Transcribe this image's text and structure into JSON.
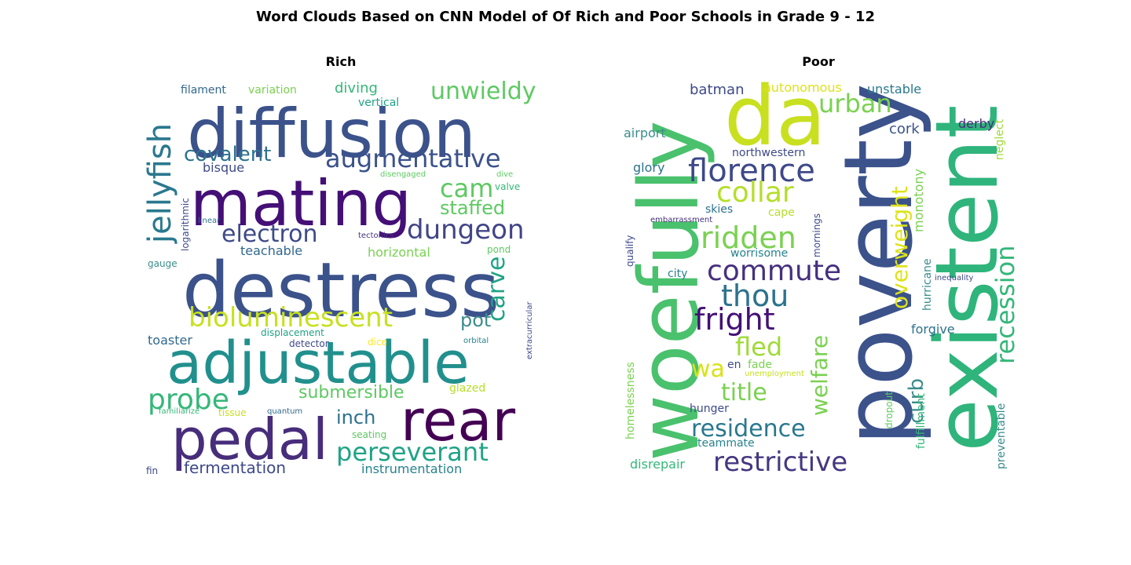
{
  "title": "Word Clouds Based on CNN Model of Of Rich and Poor Schools in Grade 9 - 12",
  "panels": {
    "rich": {
      "title": "Rich",
      "words": [
        {
          "text": "diffusion",
          "color": "#3b528b"
        },
        {
          "text": "mating",
          "color": "#440f76"
        },
        {
          "text": "destress",
          "color": "#3b528b"
        },
        {
          "text": "adjustable",
          "color": "#21908d"
        },
        {
          "text": "pedal",
          "color": "#472d7b"
        },
        {
          "text": "rear",
          "color": "#440154"
        },
        {
          "text": "jellyfish",
          "color": "#2a788e"
        },
        {
          "text": "augmentative",
          "color": "#3b528b"
        },
        {
          "text": "electron",
          "color": "#3e4a89"
        },
        {
          "text": "dungeon",
          "color": "#414487"
        },
        {
          "text": "bioluminescent",
          "color": "#c8e020"
        },
        {
          "text": "unwieldy",
          "color": "#5ec962"
        },
        {
          "text": "covalent",
          "color": "#2c728e"
        },
        {
          "text": "cam",
          "color": "#5ec962"
        },
        {
          "text": "staffed",
          "color": "#5ec962"
        },
        {
          "text": "probe",
          "color": "#35b779"
        },
        {
          "text": "carve",
          "color": "#20a386"
        },
        {
          "text": "perseverant",
          "color": "#20a386"
        },
        {
          "text": "submersible",
          "color": "#5ec962"
        },
        {
          "text": "inch",
          "color": "#2c728e"
        },
        {
          "text": "pot",
          "color": "#3b8c8c"
        },
        {
          "text": "fermentation",
          "color": "#3e4989"
        },
        {
          "text": "instrumentation",
          "color": "#26828e"
        },
        {
          "text": "horizontal",
          "color": "#7ad151"
        },
        {
          "text": "teachable",
          "color": "#31688e"
        },
        {
          "text": "diving",
          "color": "#35b779"
        },
        {
          "text": "bisque",
          "color": "#3e4a89"
        },
        {
          "text": "toaster",
          "color": "#31688e"
        },
        {
          "text": "glazed",
          "color": "#b5de2b"
        },
        {
          "text": "filament",
          "color": "#31688e"
        },
        {
          "text": "variation",
          "color": "#7ad151"
        },
        {
          "text": "vertical",
          "color": "#20a386"
        },
        {
          "text": "valve",
          "color": "#35b779"
        },
        {
          "text": "pond",
          "color": "#5ec962"
        },
        {
          "text": "gauge",
          "color": "#3b8c8c"
        },
        {
          "text": "logarithmic",
          "color": "#3e4a89"
        },
        {
          "text": "linear",
          "color": "#2c728e"
        },
        {
          "text": "disengaged",
          "color": "#5ec962"
        },
        {
          "text": "dive",
          "color": "#5ec962"
        },
        {
          "text": "tectonics",
          "color": "#46337e"
        },
        {
          "text": "displacement",
          "color": "#20a386"
        },
        {
          "text": "detector",
          "color": "#3e4a89"
        },
        {
          "text": "dice",
          "color": "#fde725"
        },
        {
          "text": "orbital",
          "color": "#26828e"
        },
        {
          "text": "extracurricular",
          "color": "#3e4a89"
        },
        {
          "text": "familiarize",
          "color": "#35b779"
        },
        {
          "text": "tissue",
          "color": "#c8e020"
        },
        {
          "text": "quantum",
          "color": "#31688e"
        },
        {
          "text": "seating",
          "color": "#5ec962"
        },
        {
          "text": "fin",
          "color": "#3e4a89"
        }
      ]
    },
    "poor": {
      "title": "Poor",
      "words": [
        {
          "text": "woefully",
          "color": "#4ac16d"
        },
        {
          "text": "da",
          "color": "#c8e020"
        },
        {
          "text": "poverty",
          "color": "#3b528b"
        },
        {
          "text": "existent",
          "color": "#2fb47c"
        },
        {
          "text": "florence",
          "color": "#3e4989"
        },
        {
          "text": "collar",
          "color": "#b5de2b"
        },
        {
          "text": "ridden",
          "color": "#7ad151"
        },
        {
          "text": "commute",
          "color": "#46307e"
        },
        {
          "text": "thou",
          "color": "#2c728e"
        },
        {
          "text": "fright",
          "color": "#440f76"
        },
        {
          "text": "fled",
          "color": "#a0da39"
        },
        {
          "text": "wa",
          "color": "#d8e219"
        },
        {
          "text": "title",
          "color": "#7ad151"
        },
        {
          "text": "residence",
          "color": "#2a788e"
        },
        {
          "text": "restrictive",
          "color": "#453781"
        },
        {
          "text": "urban",
          "color": "#7ad151"
        },
        {
          "text": "overweight",
          "color": "#dde318"
        },
        {
          "text": "recession",
          "color": "#35b779"
        },
        {
          "text": "welfare",
          "color": "#7ad151"
        },
        {
          "text": "curb",
          "color": "#3b8c8c"
        },
        {
          "text": "batman",
          "color": "#3e4989"
        },
        {
          "text": "autonomous",
          "color": "#dde318"
        },
        {
          "text": "unstable",
          "color": "#2a788e"
        },
        {
          "text": "airport",
          "color": "#3b8c8c"
        },
        {
          "text": "cork",
          "color": "#3b528b"
        },
        {
          "text": "derby",
          "color": "#472d7b"
        },
        {
          "text": "glory",
          "color": "#2c728e"
        },
        {
          "text": "northwestern",
          "color": "#3e4989"
        },
        {
          "text": "neglect",
          "color": "#a0da39"
        },
        {
          "text": "monotony",
          "color": "#7ad151"
        },
        {
          "text": "skies",
          "color": "#2c728e"
        },
        {
          "text": "cape",
          "color": "#b5de2b"
        },
        {
          "text": "embarrassment",
          "color": "#46307e"
        },
        {
          "text": "mornings",
          "color": "#3e4989"
        },
        {
          "text": "qualify",
          "color": "#3e4a89"
        },
        {
          "text": "worrisome",
          "color": "#26828e"
        },
        {
          "text": "city",
          "color": "#26828e"
        },
        {
          "text": "hurricane",
          "color": "#3b8c8c"
        },
        {
          "text": "inequality",
          "color": "#3e4989"
        },
        {
          "text": "forgive",
          "color": "#2c728e"
        },
        {
          "text": "preventable",
          "color": "#3b8c8c"
        },
        {
          "text": "homelessness",
          "color": "#7ad151"
        },
        {
          "text": "fade",
          "color": "#7ad151"
        },
        {
          "text": "en",
          "color": "#3e4a89"
        },
        {
          "text": "unemployment",
          "color": "#c8e020"
        },
        {
          "text": "hunger",
          "color": "#3e4989"
        },
        {
          "text": "teammate",
          "color": "#26828e"
        },
        {
          "text": "dropout",
          "color": "#5ec962"
        },
        {
          "text": "fulfillment",
          "color": "#35b779"
        },
        {
          "text": "disrepair",
          "color": "#35b779"
        }
      ]
    }
  }
}
